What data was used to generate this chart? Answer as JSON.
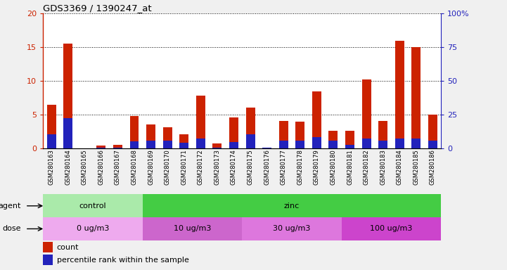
{
  "title": "GDS3369 / 1390247_at",
  "samples": [
    "GSM280163",
    "GSM280164",
    "GSM280165",
    "GSM280166",
    "GSM280167",
    "GSM280168",
    "GSM280169",
    "GSM280170",
    "GSM280171",
    "GSM280172",
    "GSM280173",
    "GSM280174",
    "GSM280175",
    "GSM280176",
    "GSM280177",
    "GSM280178",
    "GSM280179",
    "GSM280180",
    "GSM280181",
    "GSM280182",
    "GSM280183",
    "GSM280184",
    "GSM280185",
    "GSM280186"
  ],
  "count": [
    6.5,
    15.5,
    0.0,
    0.4,
    0.5,
    4.8,
    3.6,
    3.1,
    2.1,
    7.8,
    0.7,
    4.6,
    6.1,
    0.1,
    4.1,
    4.0,
    8.5,
    2.6,
    2.6,
    10.2,
    4.1,
    16.0,
    15.0,
    5.0
  ],
  "percentile": [
    2.1,
    4.5,
    0.0,
    0.1,
    0.1,
    1.1,
    1.2,
    1.2,
    0.9,
    1.5,
    0.1,
    1.0,
    2.1,
    0.1,
    1.2,
    1.2,
    1.7,
    1.2,
    0.5,
    1.5,
    1.2,
    1.5,
    1.5,
    1.2
  ],
  "count_color": "#cc2200",
  "percentile_color": "#2222bb",
  "ylim_left": [
    0,
    20
  ],
  "ylim_right": [
    0,
    100
  ],
  "yticks_left": [
    0,
    5,
    10,
    15,
    20
  ],
  "yticks_right": [
    0,
    25,
    50,
    75,
    100
  ],
  "agent_groups": [
    {
      "label": "control",
      "start": 0,
      "end": 6,
      "color": "#aaeaaa"
    },
    {
      "label": "zinc",
      "start": 6,
      "end": 24,
      "color": "#44cc44"
    }
  ],
  "dose_groups": [
    {
      "label": "0 ug/m3",
      "start": 0,
      "end": 6,
      "color": "#eeaaee"
    },
    {
      "label": "10 ug/m3",
      "start": 6,
      "end": 12,
      "color": "#cc66cc"
    },
    {
      "label": "30 ug/m3",
      "start": 12,
      "end": 18,
      "color": "#dd77dd"
    },
    {
      "label": "100 ug/m3",
      "start": 18,
      "end": 24,
      "color": "#cc44cc"
    }
  ],
  "agent_label": "agent",
  "dose_label": "dose",
  "plot_bg": "#ffffff",
  "fig_bg": "#f0f0f0",
  "bar_width": 0.55,
  "left_axis_color": "#cc2200",
  "right_axis_color": "#2222bb"
}
